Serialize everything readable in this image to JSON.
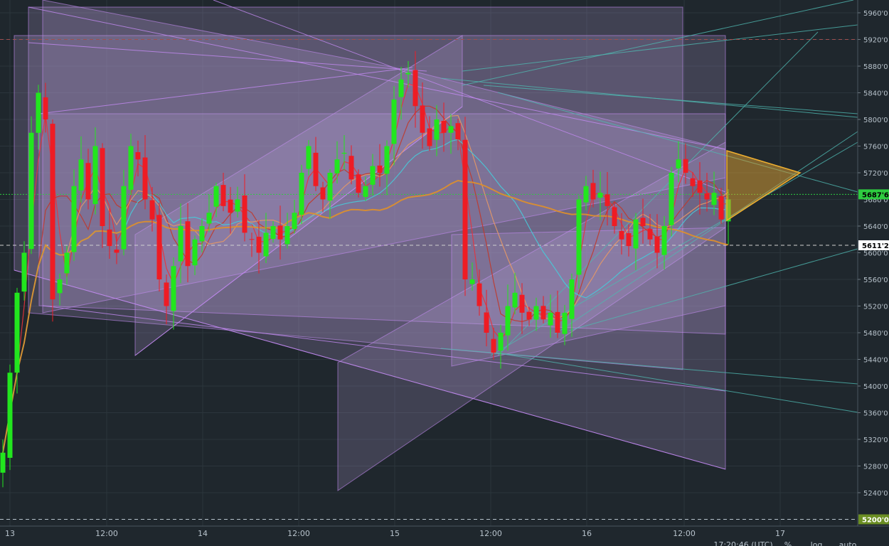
{
  "chart_data": {
    "type": "candlestick",
    "instrument_note": "",
    "y_axis": {
      "min": 5190,
      "max": 5970,
      "ticks": [
        "5960'0",
        "5920'0",
        "5880'0",
        "5840'0",
        "5800'0",
        "5760'0",
        "5720'0",
        "5640'0",
        "5600'0",
        "5560'0",
        "5520'0",
        "5480'0",
        "5440'0",
        "5400'0",
        "5360'0",
        "5320'0",
        "5280'0",
        "5240'0"
      ],
      "price_labels": [
        {
          "text": "5687'6",
          "value": 5687.6,
          "color": "#2ecc40",
          "text_color": "#000000"
        },
        {
          "text": "5611'2",
          "value": 5611.2,
          "color": "#ffffff",
          "text_color": "#000000"
        },
        {
          "text": "5200'0",
          "value": 5200,
          "color": "#6b8e23",
          "text_color": "#ffffff"
        }
      ],
      "partial_labels": [
        "5680'0"
      ]
    },
    "x_axis": {
      "ticks": [
        "13",
        "12:00",
        "14",
        "12:00",
        "15",
        "12:00",
        "16",
        "12:00",
        "17"
      ],
      "bottom_right_text": [
        "17:20:46 (UTC)",
        "%",
        "log",
        "auto"
      ],
      "grid": true
    },
    "horizontal_lines": [
      {
        "value": 5920,
        "style": "dashed",
        "color": "#a05050"
      },
      {
        "value": 5687.6,
        "style": "dotted",
        "color": "#2ecc40"
      },
      {
        "value": 5611.2,
        "style": "dashed",
        "color": "#d0d0d0"
      },
      {
        "value": 5200,
        "style": "dashed",
        "color": "#b8c3cc"
      }
    ],
    "candles_close_path": [
      5300,
      5420,
      5540,
      5600,
      5780,
      5840,
      5800,
      5530,
      5560,
      5600,
      5700,
      5740,
      5680,
      5760,
      5640,
      5610,
      5600,
      5700,
      5760,
      5740,
      5680,
      5650,
      5560,
      5520,
      5580,
      5640,
      5580,
      5620,
      5640,
      5660,
      5700,
      5670,
      5660,
      5680,
      5630,
      5620,
      5600,
      5630,
      5640,
      5620,
      5640,
      5660,
      5720,
      5760,
      5700,
      5680,
      5720,
      5740,
      5750,
      5710,
      5690,
      5700,
      5730,
      5720,
      5760,
      5830,
      5860,
      5870,
      5820,
      5780,
      5760,
      5800,
      5780,
      5790,
      5770,
      5560,
      5560,
      5520,
      5480,
      5450,
      5480,
      5520,
      5540,
      5510,
      5500,
      5520,
      5500,
      5510,
      5480,
      5510,
      5560,
      5680,
      5700,
      5680,
      5690,
      5670,
      5640,
      5620,
      5610,
      5650,
      5640,
      5620,
      5600,
      5640,
      5720,
      5740,
      5720,
      5700,
      5690,
      5680,
      5690,
      5650,
      5680
    ],
    "moving_averages": [
      {
        "color": "#e8323c",
        "label": ""
      },
      {
        "color": "#c0392b",
        "label": ""
      },
      {
        "color": "#e59866",
        "label": ""
      },
      {
        "color": "#48c9d8",
        "label": ""
      },
      {
        "color": "#e0902a",
        "label": ""
      }
    ],
    "colors": {
      "up": "#22e61e",
      "down": "#ee1c24",
      "grid": "#2b353c",
      "background": "#1f272d",
      "overlay_fill": "#b59ed8",
      "overlay_stroke": "#c38af2",
      "teal_line": "#4fb8b0",
      "triangle": "#d29a33"
    }
  },
  "toolbar": {
    "percent": "%",
    "log": "log",
    "auto": "auto",
    "time": "17:20:46 (UTC)"
  }
}
